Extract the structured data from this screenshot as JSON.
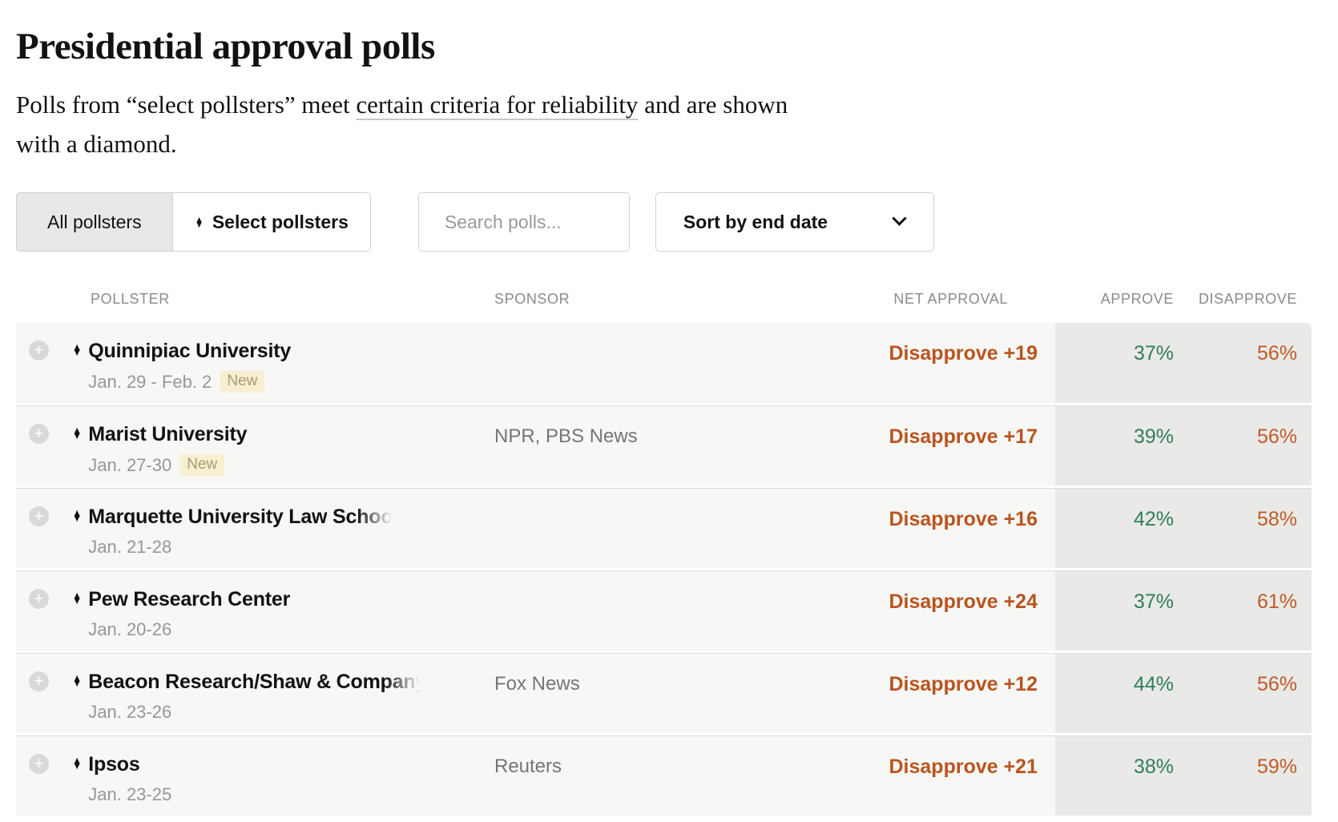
{
  "page": {
    "title": "Presidential approval polls",
    "subtitle": {
      "prefix": "Polls from “select pollsters” meet ",
      "link": "certain criteria for reliability",
      "suffix": " and are shown",
      "line2": "with a diamond."
    }
  },
  "filters": {
    "all_label": "All pollsters",
    "select_label": "Select pollsters",
    "diamond": "♦",
    "search_placeholder": "Search polls...",
    "sort_label": "Sort by end date"
  },
  "table": {
    "expand_symbol": "+",
    "diamond": "♦",
    "new_badge": "New",
    "headers": {
      "pollster": "POLLSTER",
      "sponsor": "SPONSOR",
      "net": "NET APPROVAL",
      "approve": "APPROVE",
      "disapprove": "DISAPPROVE"
    },
    "rows": [
      {
        "pollster": "Quinnipiac University",
        "dates": "Jan. 29 - Feb. 2",
        "is_new": true,
        "sponsor": "",
        "net": "Disapprove +19",
        "approve": "37%",
        "disapprove": "56%"
      },
      {
        "pollster": "Marist University",
        "dates": "Jan. 27-30",
        "is_new": true,
        "sponsor": "NPR, PBS News",
        "net": "Disapprove +17",
        "approve": "39%",
        "disapprove": "56%"
      },
      {
        "pollster": "Marquette University Law School",
        "dates": "Jan. 21-28",
        "is_new": false,
        "sponsor": "",
        "net": "Disapprove +16",
        "approve": "42%",
        "disapprove": "58%"
      },
      {
        "pollster": "Pew Research Center",
        "dates": "Jan. 20-26",
        "is_new": false,
        "sponsor": "",
        "net": "Disapprove +24",
        "approve": "37%",
        "disapprove": "61%"
      },
      {
        "pollster": "Beacon Research/Shaw & Company",
        "dates": "Jan. 23-26",
        "is_new": false,
        "sponsor": "Fox News",
        "net": "Disapprove +12",
        "approve": "44%",
        "disapprove": "56%"
      },
      {
        "pollster": "Ipsos",
        "dates": "Jan. 23-25",
        "is_new": false,
        "sponsor": "Reuters",
        "net": "Disapprove +21",
        "approve": "38%",
        "disapprove": "59%"
      }
    ]
  },
  "colors": {
    "approve_green": "#2f7f58",
    "disapprove_orange": "#c05b26",
    "net_orange": "#b9541f",
    "band_gray": "#e9e9e7",
    "row_gray": "#f7f7f5",
    "badge_bg": "#f8eed2"
  }
}
